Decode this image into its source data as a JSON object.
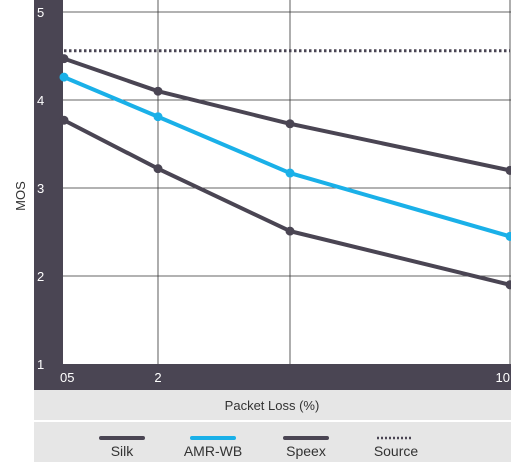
{
  "chart_data": {
    "type": "line",
    "xlabel": "Packet Loss (%)",
    "ylabel": "MOS",
    "x_tick_labels": [
      "05",
      "2",
      "10"
    ],
    "ylim": [
      1,
      5
    ],
    "yticks": [
      1,
      2,
      3,
      4,
      5
    ],
    "grid": true,
    "legend_position": "bottom",
    "series": [
      {
        "name": "Silk",
        "color": "#4a4553",
        "style": "solid",
        "points": [
          [
            0.5,
            4.47
          ],
          [
            2,
            4.1
          ],
          [
            5,
            3.73
          ],
          [
            10,
            3.2
          ]
        ]
      },
      {
        "name": "AMR-WB",
        "color": "#1ab0e8",
        "style": "solid",
        "points": [
          [
            0.5,
            4.26
          ],
          [
            2,
            3.81
          ],
          [
            5,
            3.17
          ],
          [
            10,
            2.45
          ]
        ]
      },
      {
        "name": "Speex",
        "color": "#4a4553",
        "style": "solid",
        "points": [
          [
            0.5,
            3.77
          ],
          [
            2,
            3.22
          ],
          [
            5,
            2.51
          ],
          [
            10,
            1.9
          ]
        ]
      },
      {
        "name": "Source",
        "color": "#4a4553",
        "style": "dotted",
        "points": [
          [
            0.5,
            4.56
          ],
          [
            10,
            4.56
          ]
        ]
      }
    ]
  }
}
